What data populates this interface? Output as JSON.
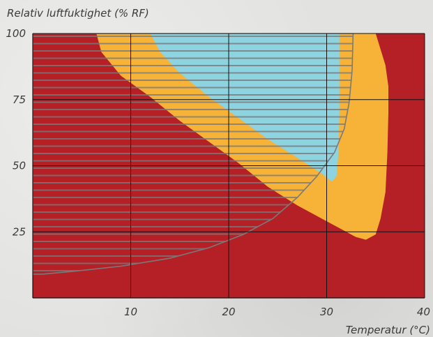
{
  "chart_data": {
    "type": "area",
    "ylabel": "Relativ luftfuktighet (% RF)",
    "xlabel": "Temperatur (°C)",
    "xlim": [
      0,
      40
    ],
    "ylim": [
      0,
      100
    ],
    "x_ticks": [
      "10",
      "20",
      "30",
      "40"
    ],
    "y_ticks": [
      "25",
      "50",
      "75",
      "100"
    ],
    "grid": true,
    "colors": {
      "red_zone": "#b51f26",
      "orange_zone": "#f7b238",
      "blue_zone": "#8dd3e0",
      "hatch": "#7a7a7a",
      "grid": "#111111"
    },
    "regions": [
      {
        "color": "red_zone",
        "points": [
          [
            0,
            0
          ],
          [
            40,
            0
          ],
          [
            40,
            100
          ],
          [
            0,
            100
          ]
        ]
      },
      {
        "color": "orange_zone",
        "points": [
          [
            6.5,
            100
          ],
          [
            7,
            93
          ],
          [
            9,
            84
          ],
          [
            12,
            76
          ],
          [
            15,
            67
          ],
          [
            18,
            59
          ],
          [
            21,
            51
          ],
          [
            24,
            42
          ],
          [
            27,
            35
          ],
          [
            30,
            29
          ],
          [
            32,
            25
          ],
          [
            33,
            23
          ],
          [
            34,
            22
          ],
          [
            35,
            24
          ],
          [
            35.5,
            30
          ],
          [
            36,
            40
          ],
          [
            36.2,
            55
          ],
          [
            36.3,
            70
          ],
          [
            36.3,
            80
          ],
          [
            36,
            88
          ],
          [
            35.5,
            94
          ],
          [
            35,
            100
          ]
        ]
      },
      {
        "color": "blue_zone",
        "points": [
          [
            12,
            100
          ],
          [
            13,
            93
          ],
          [
            15,
            85
          ],
          [
            18,
            76
          ],
          [
            21,
            68
          ],
          [
            24,
            60
          ],
          [
            27,
            53
          ],
          [
            29.5,
            47
          ],
          [
            30.5,
            44
          ],
          [
            31,
            46
          ],
          [
            31.2,
            55
          ],
          [
            31.3,
            70
          ],
          [
            31.3,
            85
          ],
          [
            31.3,
            100
          ]
        ]
      }
    ],
    "hatched_region": {
      "points": [
        [
          0,
          100
        ],
        [
          32.7,
          100
        ],
        [
          32.6,
          86
        ],
        [
          32.3,
          74
        ],
        [
          31.8,
          64
        ],
        [
          30.8,
          55
        ],
        [
          29,
          46
        ],
        [
          27,
          38
        ],
        [
          24.5,
          30
        ],
        [
          21.5,
          24
        ],
        [
          18,
          19
        ],
        [
          14,
          15
        ],
        [
          9,
          12
        ],
        [
          4,
          10
        ],
        [
          1,
          9
        ],
        [
          0,
          9
        ]
      ]
    }
  }
}
